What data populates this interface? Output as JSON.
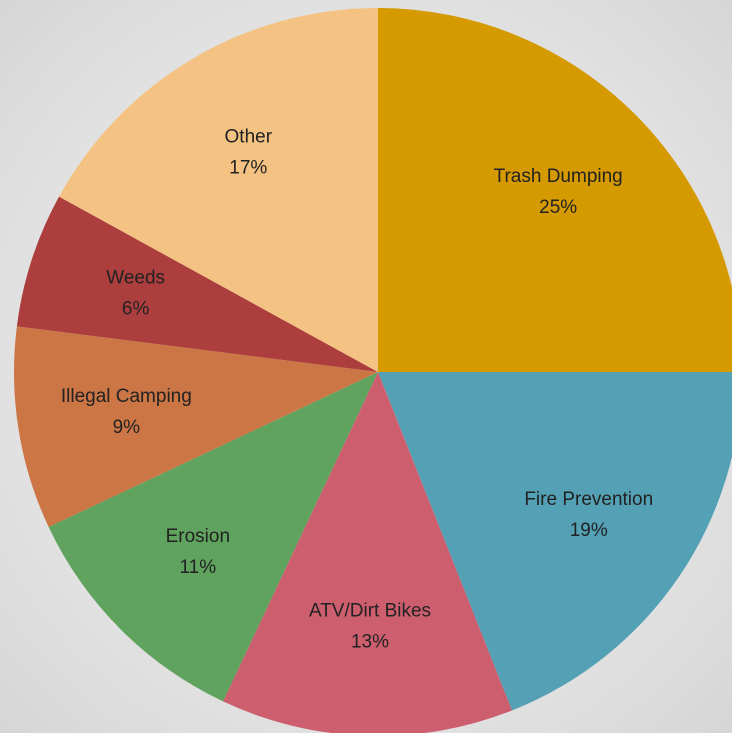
{
  "chart_data": {
    "type": "pie",
    "categories": [
      "Trash Dumping",
      "Fire Prevention",
      "ATV/Dirt Bikes",
      "Erosion",
      "Illegal Camping",
      "Weeds",
      "Other"
    ],
    "values": [
      25,
      19,
      13,
      11,
      9,
      6,
      17
    ],
    "value_labels": [
      "25%",
      "19%",
      "13%",
      "11%",
      "9%",
      "6%",
      "17%"
    ],
    "colors": [
      "#d59a00",
      "#54a1b5",
      "#cc5e6e",
      "#5fa35e",
      "#cc7646",
      "#ac3e3e",
      "#f4c383"
    ]
  }
}
